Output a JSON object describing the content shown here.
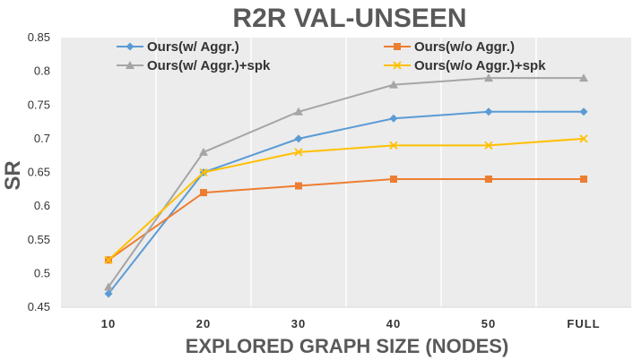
{
  "chart_data": {
    "type": "line",
    "title": "R2R VAL-UNSEEN",
    "xlabel": "EXPLORED GRAPH SIZE (NODES)",
    "ylabel": "SR",
    "categories": [
      "10",
      "20",
      "30",
      "40",
      "50",
      "FULL"
    ],
    "ylim": [
      0.45,
      0.85
    ],
    "yticks": [
      "0.45",
      "0.5",
      "0.55",
      "0.6",
      "0.65",
      "0.7",
      "0.75",
      "0.8",
      "0.85"
    ],
    "grid": true,
    "legend_position": "top",
    "series": [
      {
        "name": "Ours(w/ Aggr.)",
        "color": "#5B9BD5",
        "marker": "diamond",
        "values": [
          0.47,
          0.65,
          0.7,
          0.73,
          0.74,
          0.74
        ]
      },
      {
        "name": "Ours(w/o Aggr.)",
        "color": "#ED7D31",
        "marker": "square",
        "values": [
          0.52,
          0.62,
          0.63,
          0.64,
          0.64,
          0.64
        ]
      },
      {
        "name": "Ours(w/ Aggr.)+spk",
        "color": "#A5A5A5",
        "marker": "triangle",
        "values": [
          0.48,
          0.68,
          0.74,
          0.78,
          0.79,
          0.79
        ]
      },
      {
        "name": "Ours(w/o Aggr.)+spk",
        "color": "#FFC000",
        "marker": "x",
        "values": [
          0.52,
          0.65,
          0.68,
          0.69,
          0.69,
          0.7
        ]
      }
    ]
  }
}
